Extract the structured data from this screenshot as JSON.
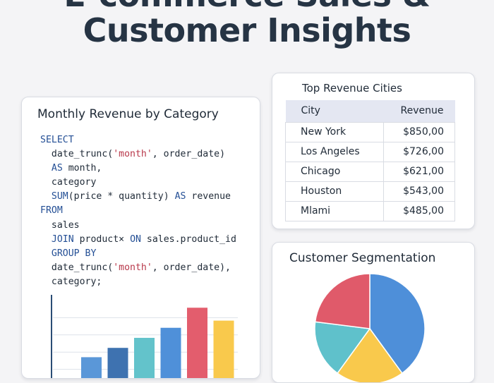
{
  "page": {
    "title_line1": "E-commerce Sales &",
    "title_line2": "Customer Insights"
  },
  "monthly_revenue": {
    "title": "Monthly Revenue by Category",
    "sql_lines": [
      [
        {
          "t": "SELECT",
          "c": "kw"
        }
      ],
      [
        {
          "t": "  date_trunc(",
          "c": ""
        },
        {
          "t": "'month'",
          "c": "str"
        },
        {
          "t": ", order_date)",
          "c": ""
        }
      ],
      [
        {
          "t": "  ",
          "c": ""
        },
        {
          "t": "AS",
          "c": "kw"
        },
        {
          "t": " month,",
          "c": ""
        }
      ],
      [
        {
          "t": "  category",
          "c": ""
        }
      ],
      [
        {
          "t": "  ",
          "c": ""
        },
        {
          "t": "SUM",
          "c": "kw"
        },
        {
          "t": "(price * quantity) ",
          "c": ""
        },
        {
          "t": "AS",
          "c": "kw"
        },
        {
          "t": " revenue",
          "c": ""
        }
      ],
      [
        {
          "t": "FROM",
          "c": "kw"
        }
      ],
      [
        {
          "t": "  sales",
          "c": ""
        }
      ],
      [
        {
          "t": "  ",
          "c": ""
        },
        {
          "t": "JOIN",
          "c": "kw"
        },
        {
          "t": " product× ",
          "c": ""
        },
        {
          "t": "ON",
          "c": "kw"
        },
        {
          "t": " sales.product_id",
          "c": ""
        }
      ],
      [
        {
          "t": "  ",
          "c": ""
        },
        {
          "t": "GROUP BY",
          "c": "kw"
        }
      ],
      [
        {
          "t": "  date_trunc(",
          "c": ""
        },
        {
          "t": "'month'",
          "c": "str"
        },
        {
          "t": ", order_date),",
          "c": ""
        }
      ],
      [
        {
          "t": "  category;",
          "c": ""
        }
      ]
    ]
  },
  "chart_data": [
    {
      "type": "bar",
      "categories": [
        "",
        "",
        "",
        "",
        "",
        ""
      ],
      "values": [
        35,
        48,
        62,
        76,
        104,
        86
      ],
      "colors": [
        "#5a97d8",
        "#3e72b0",
        "#63c3cb",
        "#4f90d9",
        "#e35d6d",
        "#f9c94c"
      ],
      "ylim": [
        0,
        120
      ],
      "grid": true,
      "title": "",
      "xlabel": "",
      "ylabel": ""
    },
    {
      "type": "pie",
      "title": "Customer Segmentation",
      "values": [
        40,
        20,
        17,
        23
      ],
      "colors": [
        "#4e8fd9",
        "#f9c94c",
        "#5fc1cb",
        "#e05a6a"
      ]
    }
  ],
  "top_cities": {
    "title": "Top Revenue Cities",
    "columns": [
      "City",
      "Revenue"
    ],
    "rows": [
      {
        "city": "New York",
        "revenue": "$850,00"
      },
      {
        "city": "Los Angeles",
        "revenue": "$726,00"
      },
      {
        "city": "Chicago",
        "revenue": "$621,00"
      },
      {
        "city": "Houston",
        "revenue": "$543,00"
      },
      {
        "city": "Mlami",
        "revenue": "$485,00"
      }
    ]
  }
}
